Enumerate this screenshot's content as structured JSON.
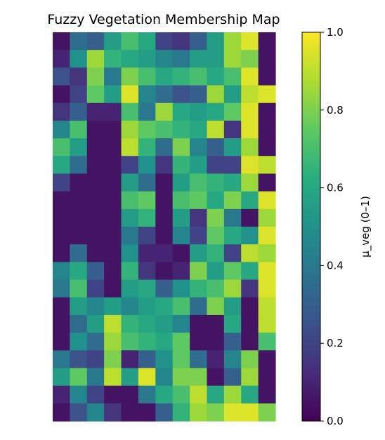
{
  "chart_data": {
    "type": "heatmap",
    "title": "Fuzzy Vegetation Membership Map",
    "colormap": "viridis",
    "axes_visible": false,
    "colorbar": {
      "label": "μ_veg (0–1)",
      "range": [
        0.0,
        1.0
      ],
      "ticks": [
        "0.0",
        "0.2",
        "0.4",
        "0.6",
        "0.8",
        "1.0"
      ]
    },
    "grid_size": {
      "rows": 22,
      "cols": 13
    },
    "values": [
      [
        0.05,
        0.35,
        0.3,
        0.55,
        0.7,
        0.6,
        0.2,
        0.15,
        0.3,
        0.55,
        0.85,
        0.95,
        0.05
      ],
      [
        0.1,
        0.5,
        0.85,
        0.65,
        0.6,
        0.55,
        0.45,
        0.4,
        0.55,
        0.55,
        0.85,
        0.8,
        0.05
      ],
      [
        0.25,
        0.15,
        0.8,
        0.4,
        0.8,
        0.7,
        0.6,
        0.65,
        0.7,
        0.6,
        0.7,
        0.95,
        0.05
      ],
      [
        0.05,
        0.2,
        0.75,
        0.55,
        0.95,
        0.45,
        0.35,
        0.25,
        0.3,
        0.85,
        0.55,
        0.9,
        0.95
      ],
      [
        0.15,
        0.3,
        0.1,
        0.1,
        0.7,
        0.4,
        0.85,
        0.6,
        0.55,
        0.6,
        0.75,
        0.95,
        0.05
      ],
      [
        0.45,
        0.7,
        0.05,
        0.05,
        0.85,
        0.75,
        0.7,
        0.65,
        0.6,
        0.9,
        0.15,
        0.95,
        0.05
      ],
      [
        0.7,
        0.55,
        0.05,
        0.05,
        0.9,
        0.65,
        0.35,
        0.8,
        0.45,
        0.3,
        0.55,
        0.85,
        0.05
      ],
      [
        0.6,
        0.35,
        0.05,
        0.05,
        0.2,
        0.5,
        0.15,
        0.65,
        0.55,
        0.2,
        0.2,
        0.95,
        0.9
      ],
      [
        0.2,
        0.05,
        0.05,
        0.05,
        0.55,
        0.35,
        0.05,
        0.55,
        0.7,
        0.65,
        0.6,
        0.85,
        0.05
      ],
      [
        0.05,
        0.05,
        0.05,
        0.05,
        0.7,
        0.75,
        0.05,
        0.7,
        0.75,
        0.6,
        0.8,
        0.6,
        0.95
      ],
      [
        0.05,
        0.05,
        0.05,
        0.05,
        0.55,
        0.65,
        0.05,
        0.55,
        0.15,
        0.8,
        0.4,
        0.05,
        0.85
      ],
      [
        0.05,
        0.05,
        0.05,
        0.05,
        0.4,
        0.2,
        0.05,
        0.45,
        0.2,
        0.75,
        0.6,
        0.5,
        0.95
      ],
      [
        0.05,
        0.35,
        0.05,
        0.05,
        0.5,
        0.1,
        0.1,
        0.05,
        0.55,
        0.65,
        0.2,
        0.9,
        0.85
      ],
      [
        0.45,
        0.6,
        0.3,
        0.05,
        0.65,
        0.15,
        0.05,
        0.1,
        0.8,
        0.55,
        0.75,
        0.6,
        0.95
      ],
      [
        0.4,
        0.7,
        0.2,
        0.05,
        0.55,
        0.6,
        0.3,
        0.5,
        0.65,
        0.7,
        0.85,
        0.15,
        0.95
      ],
      [
        0.05,
        0.55,
        0.45,
        0.55,
        0.45,
        0.55,
        0.6,
        0.7,
        0.35,
        0.8,
        0.55,
        0.05,
        0.9
      ],
      [
        0.05,
        0.35,
        0.55,
        0.9,
        0.65,
        0.6,
        0.55,
        0.45,
        0.05,
        0.05,
        0.6,
        0.05,
        0.9
      ],
      [
        0.05,
        0.5,
        0.35,
        0.85,
        0.7,
        0.65,
        0.6,
        0.75,
        0.05,
        0.05,
        0.3,
        0.05,
        0.7
      ],
      [
        0.4,
        0.25,
        0.2,
        0.8,
        0.1,
        0.3,
        0.5,
        0.75,
        0.35,
        0.1,
        0.45,
        0.8,
        0.05
      ],
      [
        0.55,
        0.75,
        0.4,
        0.9,
        0.55,
        0.95,
        0.45,
        0.8,
        0.8,
        0.05,
        0.3,
        0.85,
        0.05
      ],
      [
        0.1,
        0.45,
        0.2,
        0.05,
        0.05,
        0.4,
        0.6,
        0.7,
        0.9,
        0.6,
        0.85,
        0.6,
        0.05
      ],
      [
        0.05,
        0.25,
        0.45,
        0.15,
        0.05,
        0.05,
        0.3,
        0.65,
        0.85,
        0.8,
        0.95,
        0.95,
        0.8
      ]
    ]
  }
}
